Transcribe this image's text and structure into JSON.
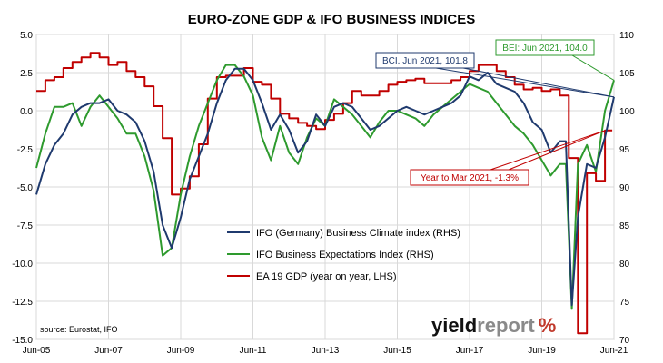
{
  "chart_data": {
    "type": "line",
    "title": "EURO-ZONE GDP & IFO BUSINESS INDICES",
    "x_labels": [
      "Jun-05",
      "Jun-07",
      "Jun-09",
      "Jun-11",
      "Jun-13",
      "Jun-15",
      "Jun-17",
      "Jun-19",
      "Jun-21"
    ],
    "x_range": [
      "2005-06",
      "2021-06"
    ],
    "y_left": {
      "range": [
        -15.0,
        5.0
      ],
      "ticks": [
        "-15.0",
        "-12.5",
        "-10.0",
        "-7.5",
        "-5.0",
        "-2.5",
        "0.0",
        "2.5",
        "5.0"
      ]
    },
    "y_right": {
      "range": [
        70,
        110
      ],
      "ticks": [
        "70",
        "75",
        "80",
        "85",
        "90",
        "95",
        "100",
        "105",
        "110"
      ]
    },
    "grid": true,
    "legend_position": "center-inside",
    "series": [
      {
        "name": "IFO (Germany) Business Climate index (RHS)",
        "axis": "right",
        "color": "#1f3a6e",
        "points": [
          [
            "2005-06",
            89.0
          ],
          [
            "2005-09",
            93.0
          ],
          [
            "2005-12",
            95.5
          ],
          [
            "2006-03",
            97.0
          ],
          [
            "2006-06",
            99.5
          ],
          [
            "2006-09",
            100.5
          ],
          [
            "2006-12",
            101.0
          ],
          [
            "2007-03",
            101.0
          ],
          [
            "2007-06",
            101.5
          ],
          [
            "2007-09",
            100.0
          ],
          [
            "2007-12",
            99.5
          ],
          [
            "2008-03",
            98.5
          ],
          [
            "2008-06",
            96.0
          ],
          [
            "2008-09",
            92.0
          ],
          [
            "2008-12",
            85.0
          ],
          [
            "2009-03",
            82.0
          ],
          [
            "2009-06",
            86.0
          ],
          [
            "2009-09",
            91.0
          ],
          [
            "2009-12",
            94.0
          ],
          [
            "2010-03",
            97.0
          ],
          [
            "2010-06",
            101.0
          ],
          [
            "2010-09",
            104.0
          ],
          [
            "2010-12",
            105.5
          ],
          [
            "2011-03",
            105.5
          ],
          [
            "2011-06",
            104.0
          ],
          [
            "2011-09",
            101.0
          ],
          [
            "2011-12",
            97.5
          ],
          [
            "2012-03",
            99.5
          ],
          [
            "2012-06",
            97.5
          ],
          [
            "2012-09",
            94.5
          ],
          [
            "2012-12",
            96.0
          ],
          [
            "2013-03",
            99.5
          ],
          [
            "2013-06",
            98.0
          ],
          [
            "2013-09",
            100.5
          ],
          [
            "2013-12",
            101.0
          ],
          [
            "2014-03",
            100.5
          ],
          [
            "2014-06",
            99.0
          ],
          [
            "2014-09",
            97.5
          ],
          [
            "2014-12",
            98.0
          ],
          [
            "2015-03",
            99.0
          ],
          [
            "2015-06",
            100.0
          ],
          [
            "2015-09",
            100.5
          ],
          [
            "2015-12",
            100.0
          ],
          [
            "2016-03",
            99.5
          ],
          [
            "2016-06",
            100.0
          ],
          [
            "2016-09",
            100.5
          ],
          [
            "2016-12",
            101.0
          ],
          [
            "2017-03",
            102.0
          ],
          [
            "2017-06",
            104.5
          ],
          [
            "2017-09",
            104.0
          ],
          [
            "2017-12",
            105.0
          ],
          [
            "2018-03",
            103.5
          ],
          [
            "2018-06",
            103.0
          ],
          [
            "2018-09",
            102.5
          ],
          [
            "2018-12",
            101.0
          ],
          [
            "2019-03",
            98.5
          ],
          [
            "2019-06",
            97.5
          ],
          [
            "2019-09",
            94.5
          ],
          [
            "2019-12",
            96.0
          ],
          [
            "2020-02",
            96.0
          ],
          [
            "2020-04",
            74.5
          ],
          [
            "2020-06",
            86.0
          ],
          [
            "2020-09",
            93.0
          ],
          [
            "2020-12",
            92.5
          ],
          [
            "2021-03",
            96.5
          ],
          [
            "2021-06",
            101.8
          ]
        ]
      },
      {
        "name": "IFO Business Expectations Index (RHS)",
        "axis": "right",
        "color": "#2e9a2e",
        "points": [
          [
            "2005-06",
            92.5
          ],
          [
            "2005-09",
            97.0
          ],
          [
            "2005-12",
            100.5
          ],
          [
            "2006-03",
            100.5
          ],
          [
            "2006-06",
            101.0
          ],
          [
            "2006-09",
            98.0
          ],
          [
            "2006-12",
            100.5
          ],
          [
            "2007-03",
            102.0
          ],
          [
            "2007-06",
            100.5
          ],
          [
            "2007-09",
            99.0
          ],
          [
            "2007-12",
            97.0
          ],
          [
            "2008-03",
            97.0
          ],
          [
            "2008-06",
            94.0
          ],
          [
            "2008-09",
            89.5
          ],
          [
            "2008-12",
            81.0
          ],
          [
            "2009-03",
            82.0
          ],
          [
            "2009-06",
            89.0
          ],
          [
            "2009-09",
            94.0
          ],
          [
            "2009-12",
            98.0
          ],
          [
            "2010-03",
            101.0
          ],
          [
            "2010-06",
            104.0
          ],
          [
            "2010-09",
            106.0
          ],
          [
            "2010-12",
            106.0
          ],
          [
            "2011-03",
            104.5
          ],
          [
            "2011-06",
            102.0
          ],
          [
            "2011-09",
            96.5
          ],
          [
            "2011-12",
            93.5
          ],
          [
            "2012-03",
            98.0
          ],
          [
            "2012-06",
            94.5
          ],
          [
            "2012-09",
            93.0
          ],
          [
            "2012-12",
            96.5
          ],
          [
            "2013-03",
            99.0
          ],
          [
            "2013-06",
            98.0
          ],
          [
            "2013-09",
            101.5
          ],
          [
            "2013-12",
            100.5
          ],
          [
            "2014-03",
            99.5
          ],
          [
            "2014-06",
            98.0
          ],
          [
            "2014-09",
            96.5
          ],
          [
            "2014-12",
            98.5
          ],
          [
            "2015-03",
            100.0
          ],
          [
            "2015-06",
            100.0
          ],
          [
            "2015-09",
            99.5
          ],
          [
            "2015-12",
            99.0
          ],
          [
            "2016-03",
            98.0
          ],
          [
            "2016-06",
            99.5
          ],
          [
            "2016-09",
            100.5
          ],
          [
            "2016-12",
            101.5
          ],
          [
            "2017-03",
            102.5
          ],
          [
            "2017-06",
            103.5
          ],
          [
            "2017-09",
            103.0
          ],
          [
            "2017-12",
            102.5
          ],
          [
            "2018-03",
            101.0
          ],
          [
            "2018-06",
            99.5
          ],
          [
            "2018-09",
            98.0
          ],
          [
            "2018-12",
            97.0
          ],
          [
            "2019-03",
            95.5
          ],
          [
            "2019-06",
            93.5
          ],
          [
            "2019-09",
            91.5
          ],
          [
            "2019-12",
            93.0
          ],
          [
            "2020-02",
            93.0
          ],
          [
            "2020-04",
            74.0
          ],
          [
            "2020-06",
            93.0
          ],
          [
            "2020-09",
            95.5
          ],
          [
            "2020-12",
            92.0
          ],
          [
            "2021-03",
            100.0
          ],
          [
            "2021-06",
            104.0
          ]
        ]
      },
      {
        "name": "EA 19 GDP (year on year, LHS)",
        "axis": "left",
        "color": "#c00000",
        "step": true,
        "points": [
          [
            "2005-06",
            1.3
          ],
          [
            "2005-09",
            2.0
          ],
          [
            "2005-12",
            2.2
          ],
          [
            "2006-03",
            2.8
          ],
          [
            "2006-06",
            3.2
          ],
          [
            "2006-09",
            3.5
          ],
          [
            "2006-12",
            3.8
          ],
          [
            "2007-03",
            3.5
          ],
          [
            "2007-06",
            3.0
          ],
          [
            "2007-09",
            3.2
          ],
          [
            "2007-12",
            2.6
          ],
          [
            "2008-03",
            2.2
          ],
          [
            "2008-06",
            1.6
          ],
          [
            "2008-09",
            0.3
          ],
          [
            "2008-12",
            -1.8
          ],
          [
            "2009-03",
            -5.5
          ],
          [
            "2009-06",
            -5.1
          ],
          [
            "2009-09",
            -4.3
          ],
          [
            "2009-12",
            -2.2
          ],
          [
            "2010-03",
            0.8
          ],
          [
            "2010-06",
            2.2
          ],
          [
            "2010-09",
            2.3
          ],
          [
            "2010-12",
            2.3
          ],
          [
            "2011-03",
            2.8
          ],
          [
            "2011-06",
            1.9
          ],
          [
            "2011-09",
            1.7
          ],
          [
            "2011-12",
            0.8
          ],
          [
            "2012-03",
            -0.2
          ],
          [
            "2012-06",
            -0.5
          ],
          [
            "2012-09",
            -0.8
          ],
          [
            "2012-12",
            -1.0
          ],
          [
            "2013-03",
            -1.2
          ],
          [
            "2013-06",
            -0.6
          ],
          [
            "2013-09",
            -0.2
          ],
          [
            "2013-12",
            0.5
          ],
          [
            "2014-03",
            1.3
          ],
          [
            "2014-06",
            1.0
          ],
          [
            "2014-09",
            1.0
          ],
          [
            "2014-12",
            1.3
          ],
          [
            "2015-03",
            1.7
          ],
          [
            "2015-06",
            1.9
          ],
          [
            "2015-09",
            2.0
          ],
          [
            "2015-12",
            2.1
          ],
          [
            "2016-03",
            1.8
          ],
          [
            "2016-06",
            1.8
          ],
          [
            "2016-09",
            1.8
          ],
          [
            "2016-12",
            2.0
          ],
          [
            "2017-03",
            2.2
          ],
          [
            "2017-06",
            2.6
          ],
          [
            "2017-09",
            3.0
          ],
          [
            "2017-12",
            3.0
          ],
          [
            "2018-03",
            2.6
          ],
          [
            "2018-06",
            2.2
          ],
          [
            "2018-09",
            1.7
          ],
          [
            "2018-12",
            1.4
          ],
          [
            "2019-03",
            1.5
          ],
          [
            "2019-06",
            1.3
          ],
          [
            "2019-09",
            1.4
          ],
          [
            "2019-12",
            1.0
          ],
          [
            "2020-03",
            -3.1
          ],
          [
            "2020-06",
            -14.6
          ],
          [
            "2020-09",
            -4.1
          ],
          [
            "2020-12",
            -4.6
          ],
          [
            "2021-03",
            -1.3
          ]
        ]
      }
    ],
    "annotations": [
      {
        "text": "BCI. Jun 2021, 101.8",
        "color": "#1f3a6e",
        "target": [
          "2021-06",
          101.8
        ],
        "axis": "right"
      },
      {
        "text": "BEI: Jun 2021, 104.0",
        "color": "#2e9a2e",
        "target": [
          "2021-06",
          104.0
        ],
        "axis": "right"
      },
      {
        "text": "Year to Mar 2021, -1.3%",
        "color": "#c00000",
        "target": [
          "2021-03",
          -1.3
        ],
        "axis": "left"
      }
    ],
    "source": "source: Eurostat, IFO"
  },
  "logo": {
    "part1": "yield",
    "part2": "report",
    "part3": "%"
  }
}
